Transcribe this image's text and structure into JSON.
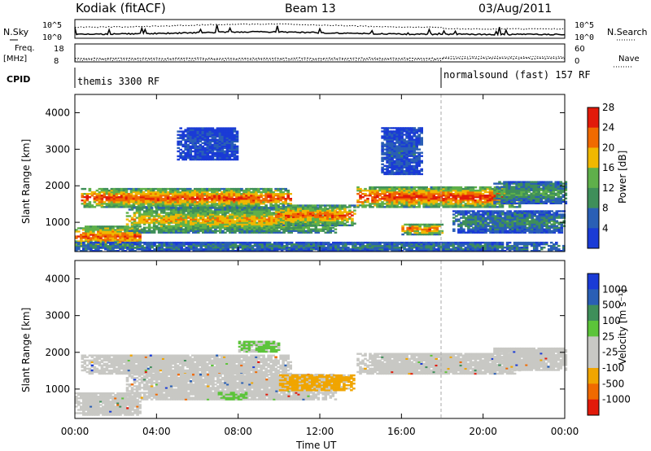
{
  "header": {
    "station": "Kodiak (fitACF)",
    "beam": "Beam 13",
    "date": "03/Aug/2011"
  },
  "noise_panel": {
    "left_label": "N.Sky",
    "right_label": "N.Search",
    "left_ticks": [
      "10^5",
      "10^0"
    ],
    "right_ticks": [
      "10^5",
      "10^0"
    ]
  },
  "freq_panel": {
    "left_label_1": "Freq.",
    "left_label_2": "[MHz]",
    "right_label": "Nave",
    "left_ticks": [
      "18",
      "8"
    ],
    "right_ticks": [
      "60",
      "0"
    ]
  },
  "cpid_panel": {
    "label": "CPID",
    "segments": [
      {
        "name": "themis 3300 RF",
        "start_hour": 0
      },
      {
        "name": "normalsound (fast) 157 RF",
        "start_hour": 18
      }
    ]
  },
  "x_axis": {
    "label": "Time UT",
    "ticks": [
      "00:00",
      "04:00",
      "08:00",
      "12:00",
      "16:00",
      "20:00",
      "00:00"
    ]
  },
  "colors": {
    "power": [
      "#1a3bd6",
      "#2a5fb5",
      "#3f8f5a",
      "#5fb04a",
      "#f0b800",
      "#f06a00",
      "#e21a0a"
    ],
    "velocity": [
      "#e21a0a",
      "#f06a00",
      "#f0a500",
      "#c8c8c4",
      "#c8c8c4",
      "#5cc43a",
      "#3f8f5a",
      "#2a5fb5",
      "#1a3bd6"
    ],
    "grey_scatter": "#c8c8c4"
  },
  "chart_data": [
    {
      "type": "heatmap",
      "name": "power",
      "ylabel": "Slant Range [km]",
      "xlabel": "",
      "xlim_hours": [
        0,
        24
      ],
      "ylim": [
        200,
        4500
      ],
      "yticks": [
        "1000",
        "2000",
        "3000",
        "4000"
      ],
      "colorbar": {
        "label": "Power [dB]",
        "ticks": [
          "4",
          "8",
          "12",
          "16",
          "20",
          "24",
          "28"
        ]
      },
      "bands": [
        {
          "t0": 0.0,
          "t1": 3.2,
          "r0": 280,
          "r1": 900,
          "level": 0.85
        },
        {
          "t0": 0.3,
          "t1": 10.6,
          "r0": 1400,
          "r1": 1900,
          "level": 0.9
        },
        {
          "t0": 2.5,
          "t1": 12.8,
          "r0": 700,
          "r1": 1400,
          "level": 0.7
        },
        {
          "t0": 9.8,
          "t1": 13.7,
          "r0": 900,
          "r1": 1450,
          "level": 0.85
        },
        {
          "t0": 13.8,
          "t1": 21.8,
          "r0": 1400,
          "r1": 1950,
          "level": 0.95
        },
        {
          "t0": 16.0,
          "t1": 18.0,
          "r0": 650,
          "r1": 950,
          "level": 0.85
        },
        {
          "t0": 18.5,
          "t1": 24.0,
          "r0": 700,
          "r1": 1300,
          "level": 0.35
        },
        {
          "t0": 20.5,
          "t1": 24.0,
          "r0": 1500,
          "r1": 2100,
          "level": 0.45
        },
        {
          "t0": 5.0,
          "t1": 8.0,
          "r0": 2700,
          "r1": 3600,
          "level": 0.15
        },
        {
          "t0": 15.0,
          "t1": 17.0,
          "r0": 2300,
          "r1": 3600,
          "level": 0.2
        },
        {
          "t0": 0.0,
          "t1": 24.0,
          "r0": 200,
          "r1": 450,
          "level": 0.3
        }
      ]
    },
    {
      "type": "heatmap",
      "name": "velocity",
      "ylabel": "Slant Range [km]",
      "xlabel": "Time UT",
      "xlim_hours": [
        0,
        24
      ],
      "ylim": [
        200,
        4500
      ],
      "yticks": [
        "1000",
        "2000",
        "3000",
        "4000"
      ],
      "colorbar": {
        "label": "Velocity [m s⁻¹]",
        "ticks": [
          "1000",
          "500",
          "100",
          "25",
          "-25",
          "-100",
          "-500",
          "-1000"
        ]
      },
      "bands": [
        {
          "t0": 0.0,
          "t1": 3.2,
          "r0": 280,
          "r1": 900,
          "v": "grey"
        },
        {
          "t0": 0.3,
          "t1": 10.6,
          "r0": 1400,
          "r1": 1900,
          "v": "grey"
        },
        {
          "t0": 2.5,
          "t1": 12.8,
          "r0": 700,
          "r1": 1400,
          "v": "grey"
        },
        {
          "t0": 10.0,
          "t1": 13.6,
          "r0": 950,
          "r1": 1400,
          "v": "orange"
        },
        {
          "t0": 13.8,
          "t1": 21.8,
          "r0": 1400,
          "r1": 1950,
          "v": "grey"
        },
        {
          "t0": 7.0,
          "t1": 8.4,
          "r0": 700,
          "r1": 900,
          "v": "green"
        },
        {
          "t0": 8.0,
          "t1": 10.0,
          "r0": 2000,
          "r1": 2300,
          "v": "green"
        },
        {
          "t0": 20.5,
          "t1": 24.0,
          "r0": 1500,
          "r1": 2100,
          "v": "grey"
        }
      ]
    }
  ]
}
